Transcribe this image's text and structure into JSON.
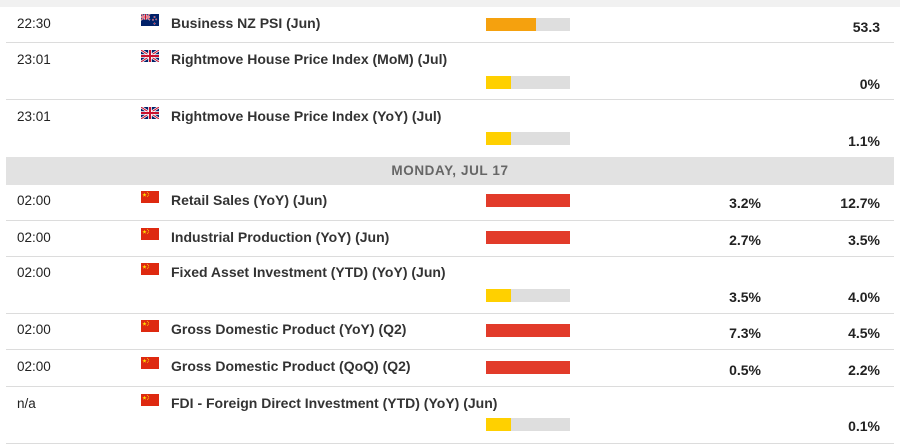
{
  "day_header": "MONDAY, JUL 17",
  "colors": {
    "high": "#e23b2a",
    "medium": "#f5a10e",
    "low": "#ffd000",
    "impact_track": "#dedede"
  },
  "rows_before": [
    {
      "time": "22:30",
      "country": "New Zealand",
      "flag_icon": "new-zealand-flag-icon",
      "event": "Business NZ PSI (Jun)",
      "impact": "medium",
      "impact_fill": 0.6,
      "previous": "",
      "actual": "53.3"
    },
    {
      "time": "23:01",
      "country": "United Kingdom",
      "flag_icon": "uk-flag-icon",
      "event": "Rightmove House Price Index (MoM) (Jul)",
      "impact": "low",
      "impact_fill": 0.3,
      "previous": "",
      "actual": "0%"
    },
    {
      "time": "23:01",
      "country": "United Kingdom",
      "flag_icon": "uk-flag-icon",
      "event": "Rightmove House Price Index (YoY) (Jul)",
      "impact": "low",
      "impact_fill": 0.3,
      "previous": "",
      "actual": "1.1%"
    }
  ],
  "rows_after": [
    {
      "time": "02:00",
      "country": "China",
      "flag_icon": "china-flag-icon",
      "event": "Retail Sales (YoY) (Jun)",
      "impact": "high",
      "impact_fill": 1.0,
      "previous": "3.2%",
      "actual": "12.7%"
    },
    {
      "time": "02:00",
      "country": "China",
      "flag_icon": "china-flag-icon",
      "event": "Industrial Production (YoY) (Jun)",
      "impact": "high",
      "impact_fill": 1.0,
      "previous": "2.7%",
      "actual": "3.5%"
    },
    {
      "time": "02:00",
      "country": "China",
      "flag_icon": "china-flag-icon",
      "event": "Fixed Asset Investment (YTD) (YoY) (Jun)",
      "impact": "low",
      "impact_fill": 0.3,
      "previous": "3.5%",
      "actual": "4.0%"
    },
    {
      "time": "02:00",
      "country": "China",
      "flag_icon": "china-flag-icon",
      "event": "Gross Domestic Product (YoY) (Q2)",
      "impact": "high",
      "impact_fill": 1.0,
      "previous": "7.3%",
      "actual": "4.5%"
    },
    {
      "time": "02:00",
      "country": "China",
      "flag_icon": "china-flag-icon",
      "event": "Gross Domestic Product (QoQ) (Q2)",
      "impact": "high",
      "impact_fill": 1.0,
      "previous": "0.5%",
      "actual": "2.2%"
    },
    {
      "time": "n/a",
      "country": "China",
      "flag_icon": "china-flag-icon",
      "event": "FDI - Foreign Direct Investment (YTD) (YoY) (Jun)",
      "impact": "low",
      "impact_fill": 0.3,
      "previous": "",
      "actual": "0.1%"
    }
  ]
}
